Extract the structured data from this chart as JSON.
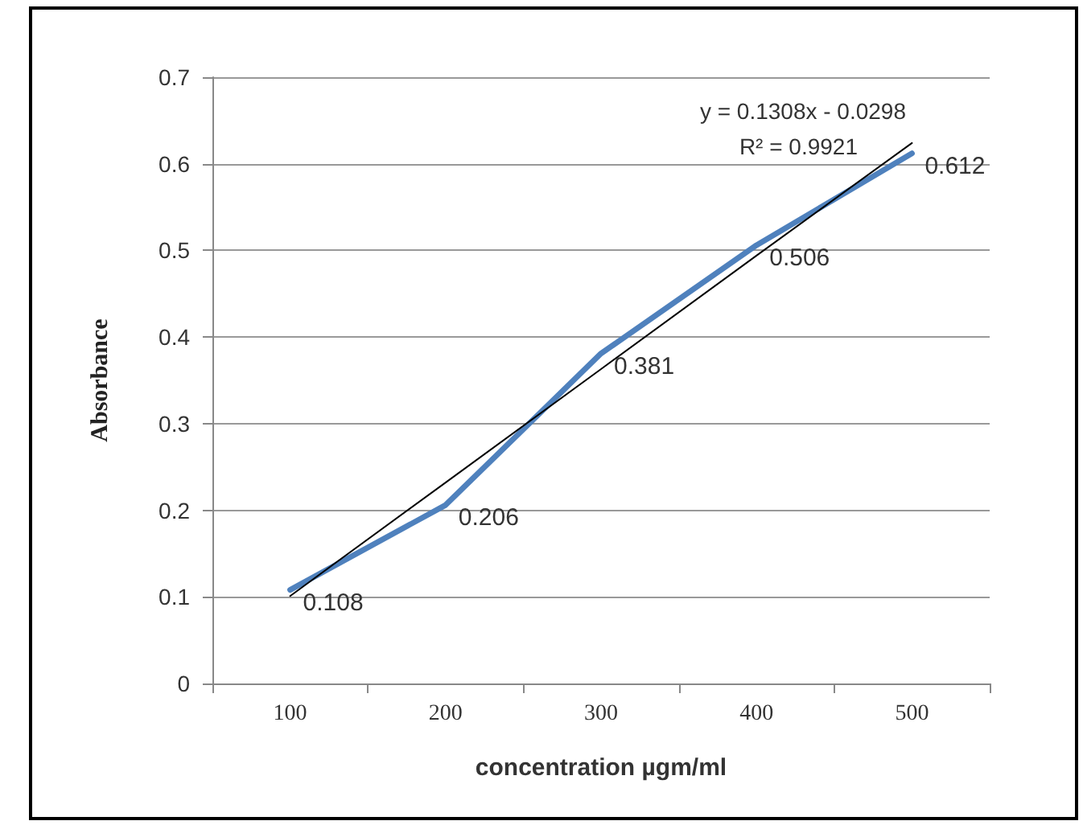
{
  "chart_data": {
    "type": "line",
    "xlabel": "concentration µgm/ml",
    "ylabel": "Absorbance",
    "categories": [
      "100",
      "200",
      "300",
      "400",
      "500"
    ],
    "series": [
      {
        "color": "#4f81bd",
        "values": [
          0.108,
          0.206,
          0.381,
          0.506,
          0.612
        ],
        "value_labels": [
          "0.108",
          "0.206",
          "0.381",
          "0.506",
          "0.612"
        ]
      },
      {
        "color": "#000000",
        "values": [
          0.101,
          0.232,
          0.363,
          0.494,
          0.624
        ]
      }
    ],
    "annotations": [
      "y = 0.1308x - 0.0298",
      "R² = 0.9921"
    ],
    "ylim": [
      0,
      0.7
    ],
    "yticks": [
      0,
      0.1,
      0.2,
      0.3,
      0.4,
      0.5,
      0.6,
      0.7
    ],
    "grid": "y",
    "marker": "none",
    "line_style": "solid"
  }
}
